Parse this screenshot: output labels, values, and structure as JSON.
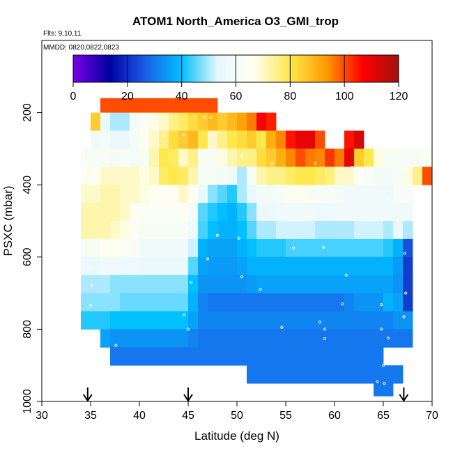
{
  "chart_data": {
    "type": "heatmap",
    "title": "ATOM1 North_America O3_GMI_trop",
    "annotations": [
      "Flts: 9,10,11",
      "MMDD: 0820,0822,0823"
    ],
    "xlabel": "Latitude (deg N)",
    "ylabel": "PSXC (mbar)",
    "xlim": [
      30,
      70
    ],
    "ylim": [
      1000,
      0
    ],
    "x_ticks": [
      30,
      35,
      40,
      45,
      50,
      55,
      60,
      65,
      70
    ],
    "y_ticks": [
      200,
      400,
      600,
      800,
      1000
    ],
    "colorbar": {
      "range": [
        0,
        120
      ],
      "ticks": [
        0,
        20,
        40,
        60,
        80,
        100,
        120
      ],
      "colors": [
        "#7a00e6",
        "#0000a0",
        "#1a5ee8",
        "#00c0ff",
        "#e8f8ff",
        "#fffff0",
        "#ffe84a",
        "#ff9a00",
        "#ff0000",
        "#a01010"
      ]
    },
    "arrows_at_latitude": [
      34.7,
      45,
      67.1
    ],
    "grid": {
      "x_edges": [
        34,
        35,
        36,
        37,
        38,
        39,
        40,
        41,
        42,
        43,
        44,
        45,
        46,
        47,
        48,
        49,
        50,
        51,
        52,
        53,
        54,
        55,
        56,
        57,
        58,
        59,
        60,
        61,
        62,
        63,
        64,
        65,
        66,
        67,
        68,
        69
      ],
      "rows": [
        {
          "p": [
            160,
            200
          ],
          "x_from": 36,
          "values": [
            100,
            100,
            100,
            100,
            100,
            100,
            100,
            100,
            100,
            100,
            100,
            100
          ]
        },
        {
          "p": [
            200,
            250
          ],
          "x_from": 35,
          "values": [
            85,
            55,
            50,
            50,
            60,
            65,
            68,
            70,
            75,
            78,
            82,
            85,
            88,
            85,
            88,
            92,
            96,
            108,
            104
          ]
        },
        {
          "p": [
            250,
            300
          ],
          "x_from": 35,
          "values": [
            58,
            60,
            55,
            55,
            60,
            66,
            70,
            75,
            82,
            85,
            88,
            80,
            70,
            75,
            80,
            82,
            85,
            80,
            90,
            95,
            105,
            110,
            110,
            100,
            null,
            null,
            105,
            112
          ]
        },
        {
          "p": [
            300,
            350
          ],
          "x_from": 34,
          "values": [
            62,
            62,
            62,
            60,
            62,
            60,
            62,
            72,
            80,
            78,
            70,
            75,
            62,
            62,
            68,
            72,
            75,
            75,
            82,
            85,
            90,
            95,
            100,
            96,
            95,
            102,
            96,
            110,
            85,
            80,
            68,
            62,
            62,
            60,
            62,
            64
          ]
        },
        {
          "p": [
            350,
            400
          ],
          "x_from": 34,
          "values": [
            65,
            66,
            70,
            70,
            70,
            70,
            68,
            70,
            78,
            80,
            78,
            72,
            62,
            62,
            60,
            58,
            50,
            62,
            72,
            75,
            75,
            78,
            80,
            80,
            78,
            76,
            70,
            70,
            64,
            62,
            60,
            60,
            62,
            68,
            75,
            100
          ]
        },
        {
          "p": [
            400,
            450
          ],
          "x_from": 34,
          "values": [
            70,
            70,
            72,
            72,
            70,
            70,
            68,
            66,
            66,
            66,
            70,
            66,
            55,
            48,
            45,
            42,
            50,
            55,
            60,
            60,
            62,
            65,
            65,
            62,
            62,
            62,
            60,
            58,
            58,
            58,
            58,
            58,
            62,
            62
          ]
        },
        {
          "p": [
            450,
            500
          ],
          "x_from": 34,
          "values": [
            72,
            72,
            72,
            72,
            70,
            66,
            64,
            64,
            64,
            64,
            64,
            60,
            45,
            42,
            40,
            38,
            42,
            48,
            55,
            56,
            57,
            58,
            58,
            58,
            56,
            56,
            58,
            58,
            58,
            58,
            58,
            58,
            58,
            58
          ]
        },
        {
          "p": [
            500,
            550
          ],
          "x_from": 34,
          "values": [
            72,
            72,
            72,
            70,
            68,
            64,
            62,
            62,
            62,
            62,
            62,
            58,
            44,
            40,
            38,
            38,
            40,
            45,
            50,
            50,
            52,
            52,
            52,
            52,
            50,
            50,
            50,
            50,
            52,
            52,
            52,
            50,
            55,
            50
          ]
        },
        {
          "p": [
            550,
            600
          ],
          "x_from": 34,
          "values": [
            62,
            62,
            66,
            66,
            64,
            62,
            58,
            58,
            58,
            58,
            58,
            52,
            38,
            36,
            36,
            36,
            38,
            40,
            42,
            42,
            42,
            44,
            44,
            44,
            44,
            44,
            44,
            44,
            44,
            44,
            44,
            42,
            38,
            25
          ]
        },
        {
          "p": [
            600,
            650
          ],
          "x_from": 34,
          "values": [
            55,
            55,
            58,
            58,
            56,
            56,
            55,
            55,
            55,
            55,
            55,
            45,
            36,
            35,
            35,
            35,
            36,
            38,
            38,
            38,
            38,
            38,
            38,
            38,
            38,
            38,
            38,
            38,
            38,
            38,
            38,
            38,
            35,
            22
          ]
        },
        {
          "p": [
            650,
            700
          ],
          "x_from": 34,
          "values": [
            50,
            50,
            50,
            48,
            48,
            48,
            48,
            48,
            48,
            48,
            48,
            40,
            34,
            34,
            34,
            34,
            34,
            35,
            36,
            36,
            36,
            36,
            36,
            36,
            36,
            36,
            36,
            36,
            36,
            36,
            36,
            36,
            34,
            22
          ]
        },
        {
          "p": [
            700,
            750
          ],
          "x_from": 34,
          "values": [
            48,
            48,
            48,
            48,
            46,
            46,
            46,
            46,
            46,
            46,
            46,
            38,
            32,
            30,
            30,
            30,
            30,
            30,
            30,
            30,
            30,
            30,
            30,
            30,
            30,
            30,
            30,
            32,
            34,
            34,
            34,
            38,
            36,
            22
          ]
        },
        {
          "p": [
            750,
            800
          ],
          "x_from": 34,
          "values": [
            42,
            42,
            42,
            40,
            40,
            40,
            40,
            40,
            40,
            40,
            40,
            36,
            32,
            32,
            32,
            32,
            32,
            32,
            32,
            32,
            32,
            32,
            32,
            32,
            32,
            32,
            32,
            32,
            32,
            32,
            32,
            32,
            34,
            34
          ]
        },
        {
          "p": [
            800,
            850
          ],
          "x_from": 36,
          "values": [
            36,
            34,
            34,
            34,
            34,
            34,
            34,
            34,
            34,
            32,
            30,
            30,
            30,
            30,
            30,
            30,
            30,
            30,
            30,
            30,
            30,
            30,
            30,
            30,
            30,
            30,
            30,
            30,
            30,
            30,
            30,
            30
          ]
        },
        {
          "p": [
            850,
            900
          ],
          "x_from": 37,
          "values": [
            30,
            30,
            30,
            30,
            30,
            30,
            30,
            30,
            30,
            30,
            30,
            30,
            30,
            30,
            30,
            30,
            30,
            30,
            30,
            30,
            30,
            30,
            30,
            30,
            30,
            30,
            30,
            30
          ]
        },
        {
          "p": [
            900,
            950
          ],
          "x_from": 51,
          "values": [
            30,
            30,
            30,
            30,
            30,
            30,
            30,
            30,
            30,
            30,
            30,
            30,
            30,
            30,
            30,
            30
          ]
        },
        {
          "p": [
            950,
            985
          ],
          "x_from": 64,
          "values": [
            30,
            30
          ]
        }
      ]
    },
    "flight_track_markers": [
      {
        "lat": 36.2,
        "p": 205
      },
      {
        "lat": 36.4,
        "p": 212
      },
      {
        "lat": 41.0,
        "p": 222
      },
      {
        "lat": 41.8,
        "p": 248
      },
      {
        "lat": 42.5,
        "p": 262
      },
      {
        "lat": 44.5,
        "p": 262
      },
      {
        "lat": 46.7,
        "p": 212
      },
      {
        "lat": 47.3,
        "p": 213
      },
      {
        "lat": 48.3,
        "p": 302
      },
      {
        "lat": 50.5,
        "p": 318
      },
      {
        "lat": 53.6,
        "p": 340
      },
      {
        "lat": 58.0,
        "p": 340
      },
      {
        "lat": 61.8,
        "p": 352
      },
      {
        "lat": 63.7,
        "p": 355
      },
      {
        "lat": 67.2,
        "p": 360
      },
      {
        "lat": 65.5,
        "p": 438
      },
      {
        "lat": 45.1,
        "p": 470
      },
      {
        "lat": 44.9,
        "p": 520
      },
      {
        "lat": 48.0,
        "p": 540
      },
      {
        "lat": 47.0,
        "p": 605
      },
      {
        "lat": 44.8,
        "p": 600
      },
      {
        "lat": 45.3,
        "p": 670
      },
      {
        "lat": 44.6,
        "p": 760
      },
      {
        "lat": 45.0,
        "p": 800
      },
      {
        "lat": 34.9,
        "p": 630
      },
      {
        "lat": 35.1,
        "p": 680
      },
      {
        "lat": 35.0,
        "p": 735
      },
      {
        "lat": 52.2,
        "p": 480
      },
      {
        "lat": 50.2,
        "p": 548
      },
      {
        "lat": 55.8,
        "p": 575
      },
      {
        "lat": 50.5,
        "p": 655
      },
      {
        "lat": 52.4,
        "p": 690
      },
      {
        "lat": 54.6,
        "p": 795
      },
      {
        "lat": 58.5,
        "p": 780
      },
      {
        "lat": 59.0,
        "p": 800
      },
      {
        "lat": 59.0,
        "p": 826
      },
      {
        "lat": 61.2,
        "p": 650
      },
      {
        "lat": 60.8,
        "p": 730
      },
      {
        "lat": 58.9,
        "p": 573
      },
      {
        "lat": 64.8,
        "p": 800
      },
      {
        "lat": 65.0,
        "p": 900
      },
      {
        "lat": 65.1,
        "p": 950
      },
      {
        "lat": 64.4,
        "p": 945
      },
      {
        "lat": 66.7,
        "p": 545
      },
      {
        "lat": 67.2,
        "p": 590
      },
      {
        "lat": 67.3,
        "p": 700
      },
      {
        "lat": 67.1,
        "p": 765
      },
      {
        "lat": 37.6,
        "p": 845
      },
      {
        "lat": 65.5,
        "p": 825
      },
      {
        "lat": 64.8,
        "p": 732
      }
    ]
  }
}
